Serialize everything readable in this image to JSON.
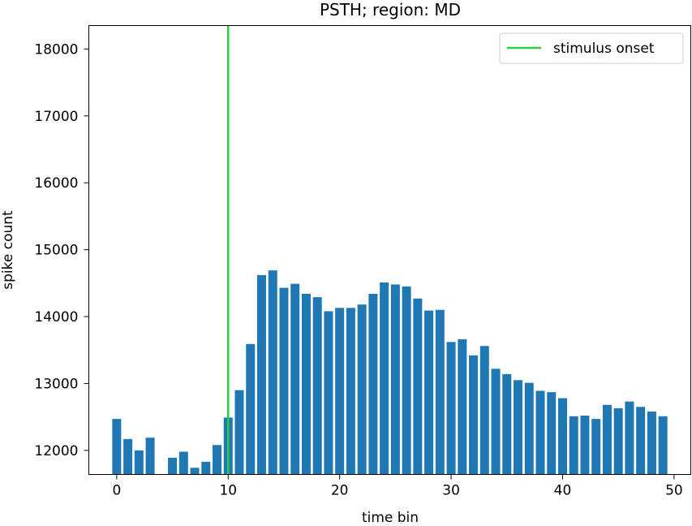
{
  "chart_data": {
    "type": "bar",
    "title": "PSTH; region: MD",
    "xlabel": "time bin",
    "ylabel": "spike count",
    "xlim": [
      -2.5,
      51.5
    ],
    "ylim": [
      11640,
      18350
    ],
    "xticks": [
      0,
      10,
      20,
      30,
      40,
      50
    ],
    "yticks": [
      12000,
      13000,
      14000,
      15000,
      16000,
      17000,
      18000
    ],
    "x": [
      0,
      1,
      2,
      3,
      4,
      5,
      6,
      7,
      8,
      9,
      10,
      11,
      12,
      13,
      14,
      15,
      16,
      17,
      18,
      19,
      20,
      21,
      22,
      23,
      24,
      25,
      26,
      27,
      28,
      29,
      30,
      31,
      32,
      33,
      34,
      35,
      36,
      37,
      38,
      39,
      40,
      41,
      42,
      43,
      44,
      45,
      46,
      47,
      48,
      49
    ],
    "values": [
      12470,
      12170,
      12000,
      12190,
      11620,
      11890,
      11980,
      11740,
      11830,
      12080,
      12490,
      12900,
      13590,
      14620,
      14690,
      14430,
      14490,
      14340,
      14290,
      14080,
      14130,
      14130,
      14180,
      14340,
      14510,
      14480,
      14450,
      14270,
      14090,
      14100,
      13620,
      13660,
      13420,
      13560,
      13220,
      13140,
      13050,
      13010,
      12890,
      12870,
      12780,
      12510,
      12520,
      12470,
      12680,
      12630,
      12730,
      12650,
      12580,
      12510
    ],
    "bar_color": "#1f77b4",
    "grid": false,
    "annotations": [
      {
        "type": "vline",
        "x": 10,
        "label": "stimulus onset",
        "color": "#2ecc40"
      }
    ],
    "legend": {
      "placement": "top-right",
      "entries": [
        {
          "label": "stimulus onset",
          "color": "#2ecc40"
        }
      ]
    }
  }
}
